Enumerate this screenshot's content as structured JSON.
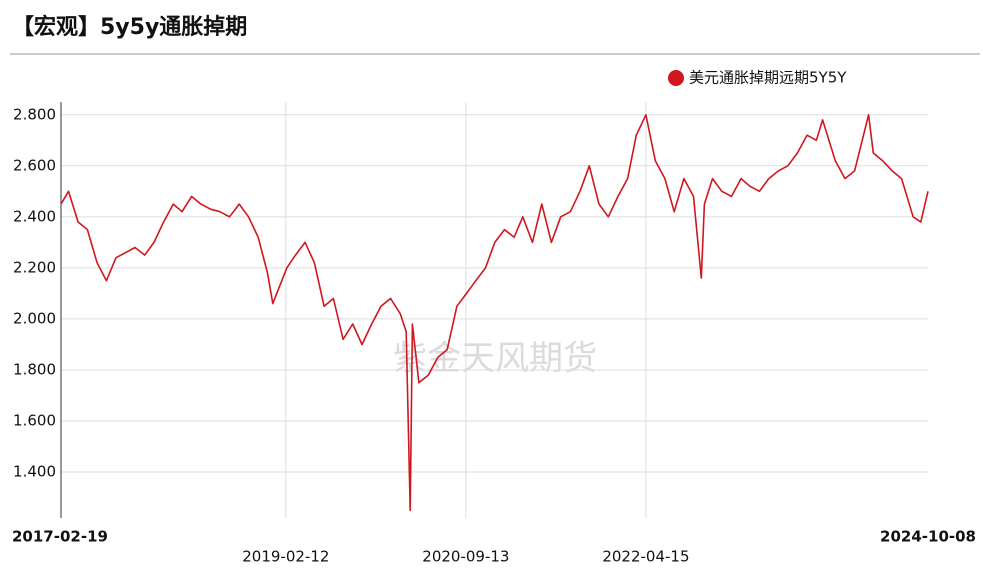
{
  "chart_data": {
    "type": "line",
    "title": "【宏观】5y5y通胀掉期",
    "watermark": "紫金天风期货",
    "x": [
      "2017-02-19",
      "2017-03-15",
      "2017-04-15",
      "2017-05-15",
      "2017-06-15",
      "2017-07-15",
      "2017-08-15",
      "2017-09-15",
      "2017-10-15",
      "2017-11-15",
      "2017-12-15",
      "2018-01-15",
      "2018-02-15",
      "2018-03-15",
      "2018-04-15",
      "2018-05-15",
      "2018-06-15",
      "2018-07-15",
      "2018-08-15",
      "2018-09-15",
      "2018-10-15",
      "2018-11-15",
      "2018-12-15",
      "2019-01-01",
      "2019-02-15",
      "2019-03-15",
      "2019-04-15",
      "2019-05-15",
      "2019-06-15",
      "2019-07-15",
      "2019-08-15",
      "2019-09-15",
      "2019-10-15",
      "2019-11-15",
      "2019-12-15",
      "2020-01-15",
      "2020-02-15",
      "2020-03-05",
      "2020-03-18",
      "2020-03-25",
      "2020-04-15",
      "2020-05-15",
      "2020-06-15",
      "2020-07-15",
      "2020-08-15",
      "2020-09-15",
      "2020-10-15",
      "2020-11-15",
      "2020-12-15",
      "2021-01-15",
      "2021-02-15",
      "2021-03-15",
      "2021-04-15",
      "2021-05-15",
      "2021-06-15",
      "2021-07-15",
      "2021-08-15",
      "2021-09-15",
      "2021-10-15",
      "2021-11-15",
      "2021-12-15",
      "2022-01-15",
      "2022-02-15",
      "2022-03-15",
      "2022-04-15",
      "2022-05-15",
      "2022-06-15",
      "2022-07-15",
      "2022-08-15",
      "2022-09-15",
      "2022-10-10",
      "2022-10-20",
      "2022-11-15",
      "2022-12-15",
      "2023-01-15",
      "2023-02-15",
      "2023-03-15",
      "2023-04-15",
      "2023-05-15",
      "2023-06-15",
      "2023-07-15",
      "2023-08-15",
      "2023-09-15",
      "2023-10-15",
      "2023-11-04",
      "2023-12-15",
      "2024-01-15",
      "2024-02-15",
      "2024-03-31",
      "2024-04-15",
      "2024-05-15",
      "2024-06-15",
      "2024-07-15",
      "2024-08-21",
      "2024-09-15",
      "2024-10-08"
    ],
    "series": [
      {
        "name": "美元通胀掉期远期5Y5Y",
        "color": "#d0161e",
        "values": [
          2.45,
          2.5,
          2.38,
          2.35,
          2.22,
          2.15,
          2.24,
          2.26,
          2.28,
          2.25,
          2.3,
          2.38,
          2.45,
          2.42,
          2.48,
          2.45,
          2.43,
          2.42,
          2.4,
          2.45,
          2.4,
          2.32,
          2.18,
          2.06,
          2.2,
          2.25,
          2.3,
          2.22,
          2.05,
          2.08,
          1.92,
          1.98,
          1.9,
          1.98,
          2.05,
          2.08,
          2.02,
          1.95,
          1.25,
          1.98,
          1.75,
          1.78,
          1.85,
          1.88,
          2.05,
          2.1,
          2.15,
          2.2,
          2.3,
          2.35,
          2.32,
          2.4,
          2.3,
          2.45,
          2.3,
          2.4,
          2.42,
          2.5,
          2.6,
          2.45,
          2.4,
          2.48,
          2.55,
          2.72,
          2.8,
          2.62,
          2.55,
          2.42,
          2.55,
          2.48,
          2.16,
          2.45,
          2.55,
          2.5,
          2.48,
          2.55,
          2.52,
          2.5,
          2.55,
          2.58,
          2.6,
          2.65,
          2.72,
          2.7,
          2.78,
          2.62,
          2.55,
          2.58,
          2.8,
          2.65,
          2.62,
          2.58,
          2.55,
          2.4,
          2.38,
          2.5
        ]
      }
    ],
    "xlim": [
      "2017-02-19",
      "2024-10-08"
    ],
    "xticks": [
      "2017-02-19",
      "2019-02-12",
      "2020-09-13",
      "2022-04-15",
      "2024-10-08"
    ],
    "ylim": [
      1.22,
      2.85
    ],
    "yticks": [
      {
        "value": 1.4,
        "label": "1.400"
      },
      {
        "value": 1.6,
        "label": "1.600"
      },
      {
        "value": 1.8,
        "label": "1.800"
      },
      {
        "value": 2.0,
        "label": "2.000"
      },
      {
        "value": 2.2,
        "label": "2.200"
      },
      {
        "value": 2.4,
        "label": "2.400"
      },
      {
        "value": 2.6,
        "label": "2.600"
      },
      {
        "value": 2.8,
        "label": "2.800"
      }
    ],
    "grid": true,
    "legend": "top-right"
  }
}
